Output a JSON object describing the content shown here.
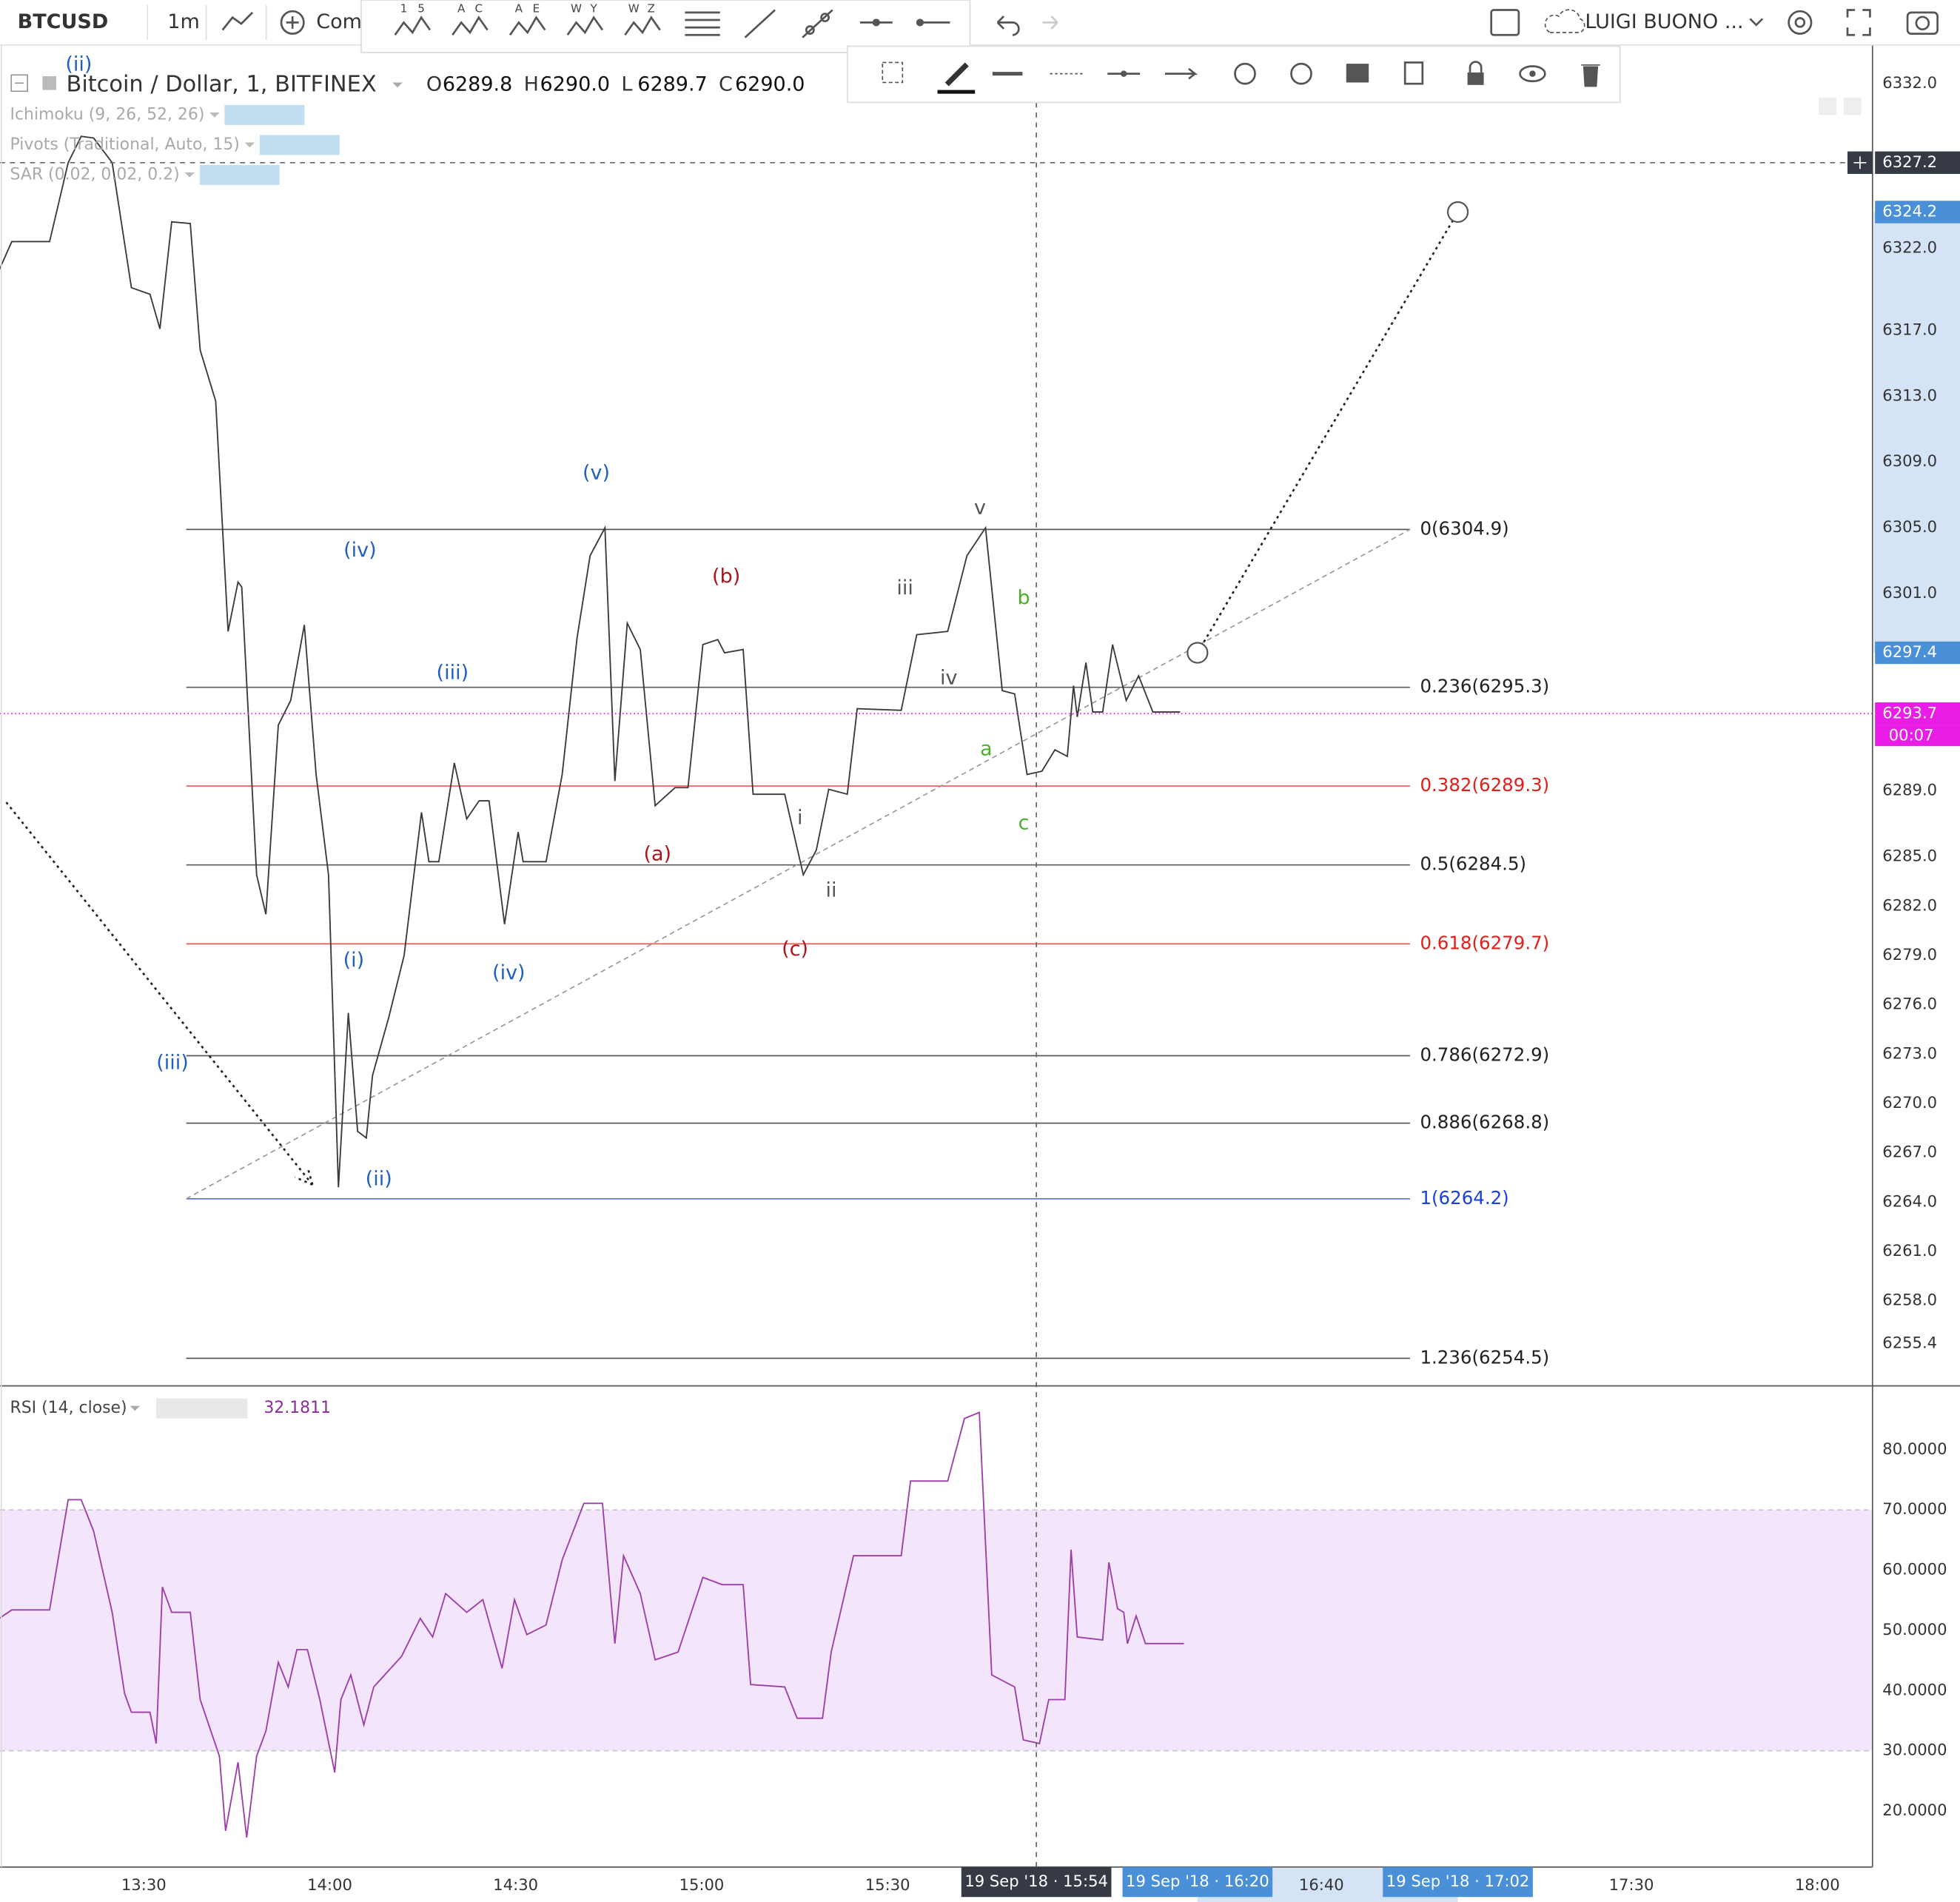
{
  "toolbar": {
    "symbol": "BTCUSD",
    "interval": "1m",
    "compare": "Comp",
    "pattern_tools": [
      [
        "1",
        "5"
      ],
      [
        "A",
        "C"
      ],
      [
        "A",
        "E"
      ],
      [
        "W",
        "Y"
      ],
      [
        "W",
        "Z"
      ]
    ],
    "user": "LUIGI BUONO ..."
  },
  "legend": {
    "ohlc": [
      {
        "key": "O",
        "value": "6289.8"
      },
      {
        "key": "H",
        "value": "6290.0"
      },
      {
        "key": "L",
        "value": "6289.7"
      },
      {
        "key": "C",
        "value": "6290.0"
      }
    ]
  },
  "indicators": [
    "Ichimoku (9, 26, 52, 26)",
    "Pivots (Traditional, Auto, 15)",
    "SAR (0.02, 0.02, 0.2)"
  ],
  "chart_data": [
    {
      "type": "line",
      "title": "Bitcoin / Dollar, 1, BITFINEX",
      "color": "#3a3a3a",
      "x": [
        786.7,
        788.7,
        794.8,
        797.8,
        799.9,
        801.9,
        804.9,
        808.0,
        811.0,
        812.6,
        814.5,
        817.5,
        819.1,
        821.6,
        823.6,
        825.2,
        825.8,
        828.2,
        829.7,
        831.7,
        833.7,
        835.9,
        837.8,
        839.8,
        841.4,
        843.0,
        844.5,
        845.9,
        846.9,
        849.5,
        852.0,
        854.8,
        856.0,
        857.6,
        860.1,
        862.1,
        864.1,
        865.7,
        868.2,
        870.4,
        871.2,
        874.9,
        877.5,
        879.9,
        882.0,
        884.4,
        886.0,
        888.0,
        890.1,
        892.5,
        895.7,
        897.8,
        900.2,
        902.6,
        903.7,
        906.7,
        908.3,
        913.4,
        916.4,
        918.5,
        920.5,
        923.5,
        925.1,
        932.2,
        934.7,
        939.7,
        942.8,
        945.8,
        948.5,
        950.5,
        952.5,
        954.9,
        957.0,
        959.0,
        960.0,
        960.6,
        962.0,
        963.1,
        964.7,
        966.3,
        968.5,
        970.5,
        972.8,
        977.2
      ],
      "values": [
        6320.7,
        6322.4,
        6322.4,
        6327.2,
        6328.8,
        6328.7,
        6327.2,
        6319.6,
        6319.2,
        6317.1,
        6323.6,
        6323.5,
        6315.8,
        6312.7,
        6298.7,
        6301.7,
        6301.4,
        6283.9,
        6281.5,
        6293.0,
        6294.5,
        6299.1,
        6290.0,
        6283.9,
        6264.9,
        6275.5,
        6268.3,
        6267.9,
        6271.7,
        6275.2,
        6279.0,
        6287.7,
        6284.7,
        6284.7,
        6290.7,
        6287.3,
        6288.4,
        6288.4,
        6280.9,
        6286.5,
        6284.7,
        6284.7,
        6290.0,
        6298.3,
        6303.3,
        6305.0,
        6289.6,
        6299.2,
        6297.6,
        6288.1,
        6289.2,
        6289.2,
        6297.9,
        6298.2,
        6297.4,
        6297.6,
        6288.8,
        6288.8,
        6283.9,
        6285.4,
        6289.1,
        6288.8,
        6294.0,
        6293.9,
        6298.5,
        6298.7,
        6303.3,
        6305.0,
        6295.1,
        6294.9,
        6290.0,
        6290.2,
        6291.5,
        6291.1,
        6295.4,
        6293.5,
        6296.8,
        6293.8,
        6293.8,
        6297.9,
        6294.5,
        6296.0,
        6293.8,
        6293.8
      ],
      "xlim": [
        786.8,
        1088.9
      ],
      "ylim": [
        6252.9,
        6333.9
      ],
      "xticks": [
        {
          "value": 810,
          "label": "13:30"
        },
        {
          "value": 840,
          "label": "14:00"
        },
        {
          "value": 870,
          "label": "14:30"
        },
        {
          "value": 900,
          "label": "15:00"
        },
        {
          "value": 930,
          "label": "15:30"
        },
        {
          "value": 1000,
          "label": "16:40"
        },
        {
          "value": 1050,
          "label": "17:30"
        },
        {
          "value": 1080,
          "label": "18:00"
        }
      ],
      "yticks": [
        {
          "value": 6332,
          "label": "6332.0"
        },
        {
          "value": 6322,
          "label": "6322.0"
        },
        {
          "value": 6317,
          "label": "6317.0"
        },
        {
          "value": 6313,
          "label": "6313.0"
        },
        {
          "value": 6309,
          "label": "6309.0"
        },
        {
          "value": 6305,
          "label": "6305.0"
        },
        {
          "value": 6301,
          "label": "6301.0"
        },
        {
          "value": 6289,
          "label": "6289.0"
        },
        {
          "value": 6285,
          "label": "6285.0"
        },
        {
          "value": 6282,
          "label": "6282.0"
        },
        {
          "value": 6279,
          "label": "6279.0"
        },
        {
          "value": 6276,
          "label": "6276.0"
        },
        {
          "value": 6273,
          "label": "6273.0"
        },
        {
          "value": 6270,
          "label": "6270.0"
        },
        {
          "value": 6267,
          "label": "6267.0"
        },
        {
          "value": 6264,
          "label": "6264.0"
        },
        {
          "value": 6261,
          "label": "6261.0"
        },
        {
          "value": 6258,
          "label": "6258.0"
        },
        6255.4
      ],
      "grid": true,
      "fib_levels": [
        {
          "label": "0(6304.9)",
          "value": 6304.9,
          "color": "#222222"
        },
        {
          "label": "0.236(6295.3)",
          "value": 6295.3,
          "color": "#222222"
        },
        {
          "label": "0.382(6289.3)",
          "value": 6289.3,
          "color": "#e0201b"
        },
        {
          "label": "0.5(6284.5)",
          "value": 6284.5,
          "color": "#222222"
        },
        {
          "label": "0.618(6279.7)",
          "value": 6279.7,
          "color": "#e0201b"
        },
        {
          "label": "0.786(6272.9)",
          "value": 6272.9,
          "color": "#222222"
        },
        {
          "label": "0.886(6268.8)",
          "value": 6268.8,
          "color": "#222222"
        },
        {
          "label": "1(6264.2)",
          "value": 6264.2,
          "color": "#1b3fe0"
        },
        {
          "label": "1.236(6254.5)",
          "value": 6254.5,
          "color": "#222222"
        }
      ],
      "price_labels": [
        {
          "value": 6327.2,
          "style": "crosshair"
        },
        {
          "value": 6324.2,
          "style": "selection"
        },
        {
          "value": 6297.4,
          "style": "selection"
        },
        {
          "value": 6293.7,
          "style": "last"
        }
      ],
      "countdown": "00:07",
      "time_labels": [
        {
          "value": 954,
          "label": "19 Sep '18 · 15:54",
          "style": "crosshair"
        },
        {
          "value": 980,
          "label": "19 Sep '18 · 16:20",
          "style": "selection"
        },
        {
          "value": 1022,
          "label": "19 Sep '18 · 17:02",
          "style": "selection"
        }
      ],
      "annotations": [
        {
          "text": "(ii)",
          "color": "#1f5fbf"
        },
        {
          "text": "(v)",
          "color": "#1f5fbf"
        },
        {
          "text": "(iv)",
          "color": "#1f5fbf"
        },
        {
          "text": "(iii)",
          "color": "#1f5fbf"
        },
        {
          "text": "(i)",
          "color": "#1f5fbf"
        },
        {
          "text": "(iv)",
          "color": "#1f5fbf"
        },
        {
          "text": "(iii)",
          "color": "#1f5fbf"
        },
        {
          "text": "(ii)",
          "color": "#1f5fbf"
        },
        {
          "text": "(b)",
          "color": "#b0141a"
        },
        {
          "text": "(a)",
          "color": "#b0141a"
        },
        {
          "text": "(c)",
          "color": "#b0141a"
        },
        {
          "text": "v",
          "color": "#555555"
        },
        {
          "text": "iii",
          "color": "#555555"
        },
        {
          "text": "iv",
          "color": "#555555"
        },
        {
          "text": "i",
          "color": "#555555"
        },
        {
          "text": "ii",
          "color": "#555555"
        },
        {
          "text": "b",
          "color": "#4caf2a"
        },
        {
          "text": "a",
          "color": "#4caf2a"
        },
        {
          "text": "c",
          "color": "#4caf2a"
        }
      ]
    },
    {
      "type": "line",
      "title": "RSI (14, close)",
      "last_value": 32.1811,
      "color": "#9c3fa8",
      "x": [
        786.7,
        788.7,
        794.8,
        797.8,
        799.9,
        801.9,
        804.9,
        806.9,
        808.0,
        811.0,
        812.0,
        813.0,
        814.5,
        817.5,
        819.1,
        822.2,
        823.2,
        825.2,
        826.6,
        828.2,
        829.7,
        831.7,
        833.3,
        834.7,
        836.4,
        838.4,
        840.8,
        841.8,
        843.4,
        845.5,
        847.1,
        851.6,
        854.6,
        856.6,
        858.7,
        862.1,
        864.7,
        867.8,
        869.8,
        871.8,
        874.9,
        877.5,
        881.0,
        884.0,
        886.0,
        887.4,
        890.1,
        892.5,
        896.2,
        900.2,
        903.3,
        906.7,
        907.9,
        913.4,
        915.4,
        919.5,
        920.9,
        924.5,
        932.2,
        933.7,
        939.7,
        942.4,
        944.8,
        946.8,
        950.5,
        951.9,
        954.5,
        956.0,
        958.6,
        959.6,
        960.6,
        964.7,
        965.7,
        967.1,
        968.1,
        968.7,
        970.1,
        971.6,
        977.8
      ],
      "values": [
        52.0,
        53.4,
        53.4,
        71.7,
        71.7,
        66.5,
        53.0,
        39.5,
        36.4,
        36.4,
        31.2,
        57.2,
        53.0,
        53.0,
        38.5,
        29.1,
        16.7,
        28.1,
        15.6,
        29.1,
        33.3,
        44.7,
        40.6,
        46.8,
        46.8,
        38.5,
        26.4,
        38.5,
        42.6,
        34.3,
        40.6,
        45.7,
        52.0,
        48.9,
        56.1,
        53.0,
        55.1,
        43.7,
        55.1,
        49.3,
        50.9,
        61.7,
        71.1,
        71.1,
        47.8,
        62.4,
        56.1,
        45.1,
        46.4,
        58.8,
        57.6,
        57.6,
        41.0,
        40.6,
        35.4,
        35.4,
        46.4,
        62.4,
        62.4,
        74.8,
        74.8,
        85.2,
        86.2,
        42.6,
        40.6,
        31.8,
        31.2,
        38.5,
        38.5,
        63.4,
        48.9,
        48.4,
        61.3,
        53.6,
        53.0,
        47.8,
        52.4,
        47.8,
        47.8
      ],
      "xlim": [
        786.8,
        1088.9
      ],
      "ylim": [
        10.9,
        90.4
      ],
      "yticks": [
        {
          "value": 80,
          "label": "80.0000"
        },
        {
          "value": 70,
          "label": "70.0000"
        },
        {
          "value": 60,
          "label": "60.0000"
        },
        {
          "value": 50,
          "label": "50.0000"
        },
        {
          "value": 40,
          "label": "40.0000"
        },
        {
          "value": 30,
          "label": "30.0000"
        },
        {
          "value": 20,
          "label": "20.0000"
        }
      ],
      "grid": true,
      "band": [
        30,
        70
      ],
      "band_color": "#f3e5fc"
    }
  ]
}
